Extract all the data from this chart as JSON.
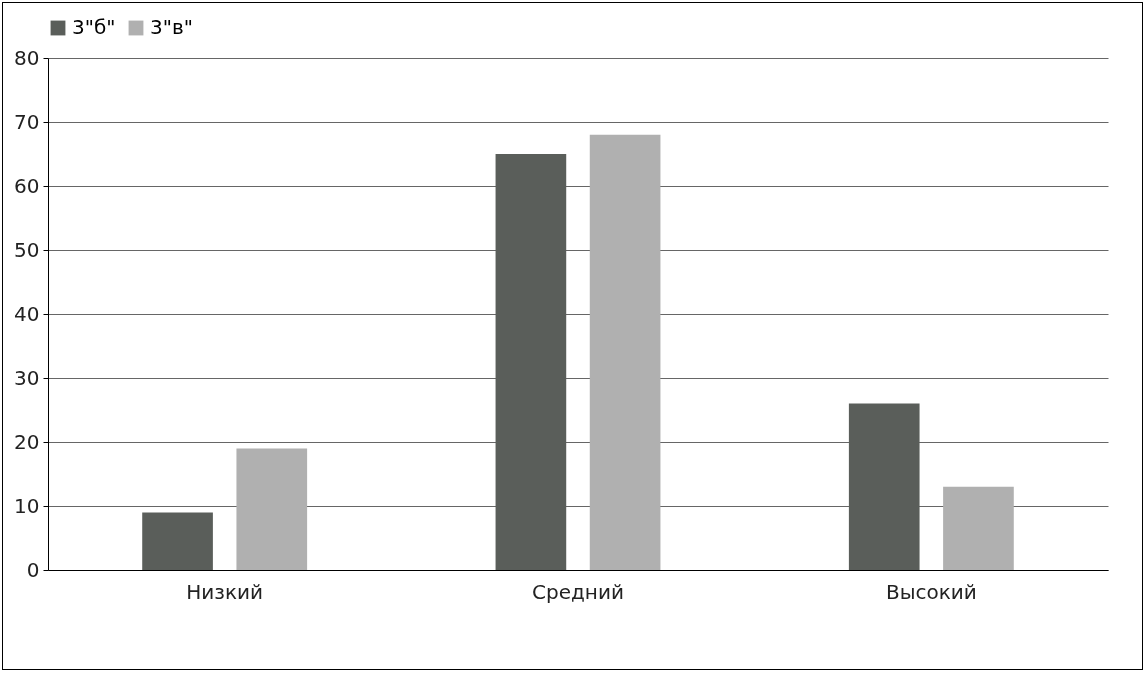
{
  "chart_data": {
    "type": "bar",
    "categories": [
      "Низкий",
      "Средний",
      "Высокий"
    ],
    "series": [
      {
        "name": "3\"б\"",
        "color": "#5a5e5a",
        "values": [
          9,
          65,
          26
        ]
      },
      {
        "name": "3\"в\"",
        "color": "#b0b0b0",
        "values": [
          19,
          68,
          13
        ]
      }
    ],
    "ylim": [
      0,
      80
    ],
    "yticks": [
      0,
      10,
      20,
      30,
      40,
      50,
      60,
      70,
      80
    ],
    "grid": "y",
    "legend": "top"
  }
}
